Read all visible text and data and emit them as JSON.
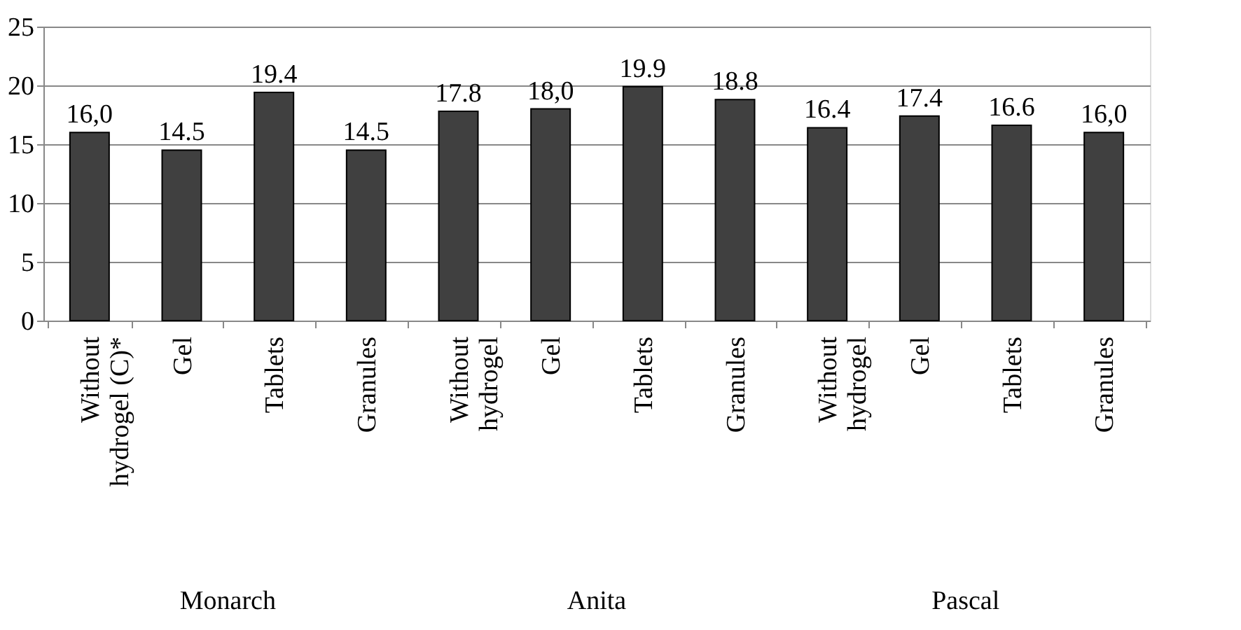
{
  "chart_data": {
    "type": "bar",
    "categories": [
      "Without hydrogel (C)*",
      "Gel",
      "Tablets",
      "Granules",
      "Without hydrogel",
      "Gel",
      "Tablets",
      "Granules",
      "Without hydrogel",
      "Gel",
      "Tablets",
      "Granules"
    ],
    "values": [
      16.0,
      14.5,
      19.4,
      14.5,
      17.8,
      18.0,
      19.9,
      18.8,
      16.4,
      17.4,
      16.6,
      16.0
    ],
    "value_labels": [
      "16,0",
      "14.5",
      "19.4",
      "14.5",
      "17.8",
      "18,0",
      "19.9",
      "18.8",
      "16.4",
      "17.4",
      "16.6",
      "16,0"
    ],
    "color": "#404040",
    "ylim": [
      0,
      25
    ],
    "yticks": [
      0,
      5,
      10,
      15,
      20,
      25
    ],
    "grid": "y",
    "annotations": [
      "Monarch",
      "Anita",
      "Pascal"
    ]
  }
}
